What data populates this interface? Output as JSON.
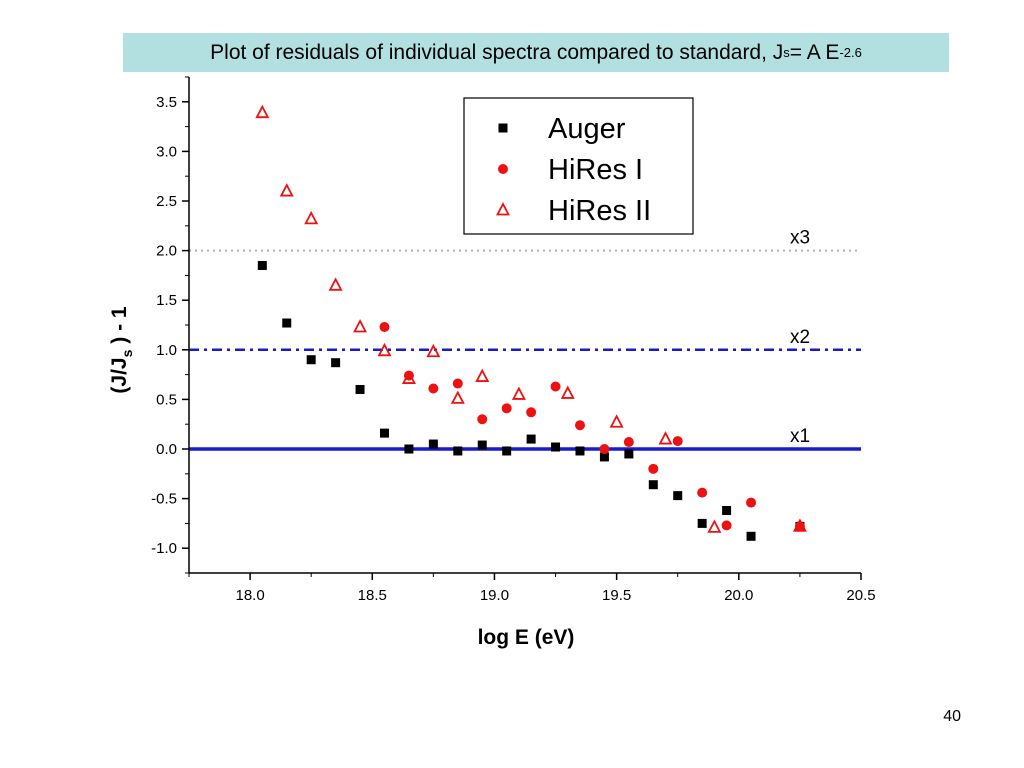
{
  "slide": {
    "title_main": "Plot of residuals of individual spectra compared to standard, J",
    "title_sub": "s",
    "title_mid": " = A E",
    "title_sup": "-2.6",
    "page_number": "40"
  },
  "chart_data": {
    "type": "scatter",
    "xlabel": "log E (eV)",
    "ylabel_main": "(J/J",
    "ylabel_sub": "s",
    "ylabel_end": " ) - 1",
    "xlim": [
      17.75,
      20.5
    ],
    "ylim": [
      -1.25,
      3.75
    ],
    "x_ticks": [
      18.0,
      18.5,
      19.0,
      19.5,
      20.0,
      20.5
    ],
    "x_tick_labels": [
      "18.0",
      "18.5",
      "19.0",
      "19.5",
      "20.0",
      "20.5"
    ],
    "y_ticks": [
      -1.0,
      -0.5,
      0.0,
      0.5,
      1.0,
      1.5,
      2.0,
      2.5,
      3.0,
      3.5
    ],
    "y_tick_labels": [
      "-1.0",
      "-0.5",
      "0.0",
      "0.5",
      "1.0",
      "1.5",
      "2.0",
      "2.5",
      "3.0",
      "3.5"
    ],
    "grid": false,
    "legend_position": "top-center",
    "series": [
      {
        "name": "Auger",
        "marker": "square",
        "color": "#000000",
        "x": [
          18.05,
          18.15,
          18.25,
          18.35,
          18.45,
          18.55,
          18.65,
          18.75,
          18.85,
          18.95,
          19.05,
          19.15,
          19.25,
          19.35,
          19.45,
          19.55,
          19.65,
          19.75,
          19.85,
          19.95,
          20.05,
          20.25
        ],
        "y": [
          1.85,
          1.27,
          0.9,
          0.87,
          0.6,
          0.16,
          0.0,
          0.05,
          -0.02,
          0.04,
          -0.02,
          0.1,
          0.02,
          -0.02,
          -0.08,
          -0.05,
          -0.36,
          -0.47,
          -0.75,
          -0.62,
          -0.88,
          -0.78
        ]
      },
      {
        "name": "HiRes I",
        "marker": "circle",
        "color": "#ee1111",
        "x": [
          18.55,
          18.65,
          18.75,
          18.85,
          18.95,
          19.05,
          19.15,
          19.25,
          19.35,
          19.45,
          19.55,
          19.65,
          19.75,
          19.85,
          19.95,
          20.05,
          20.25
        ],
        "y": [
          1.23,
          0.74,
          0.61,
          0.66,
          0.3,
          0.41,
          0.37,
          0.63,
          0.24,
          0.0,
          0.07,
          -0.2,
          0.08,
          -0.44,
          -0.77,
          -0.54,
          -0.78
        ]
      },
      {
        "name": "HiRes II",
        "marker": "triangle-open",
        "color": "#ee1111",
        "x": [
          18.05,
          18.15,
          18.25,
          18.35,
          18.45,
          18.55,
          18.65,
          18.75,
          18.85,
          18.95,
          19.1,
          19.3,
          19.5,
          19.7,
          19.9,
          20.25
        ],
        "y": [
          3.39,
          2.6,
          2.32,
          1.65,
          1.23,
          0.99,
          0.71,
          0.98,
          0.51,
          0.73,
          0.55,
          0.56,
          0.27,
          0.1,
          -0.79,
          -0.78
        ]
      }
    ],
    "reference_lines": [
      {
        "y": 2.0,
        "label": "x3",
        "style": "dotted",
        "color": "#b0b0b0"
      },
      {
        "y": 1.0,
        "label": "x2",
        "style": "dash-dot",
        "color": "#1a1acc"
      },
      {
        "y": 0.0,
        "label": "x1",
        "style": "solid",
        "color": "#1a1acc"
      }
    ]
  }
}
